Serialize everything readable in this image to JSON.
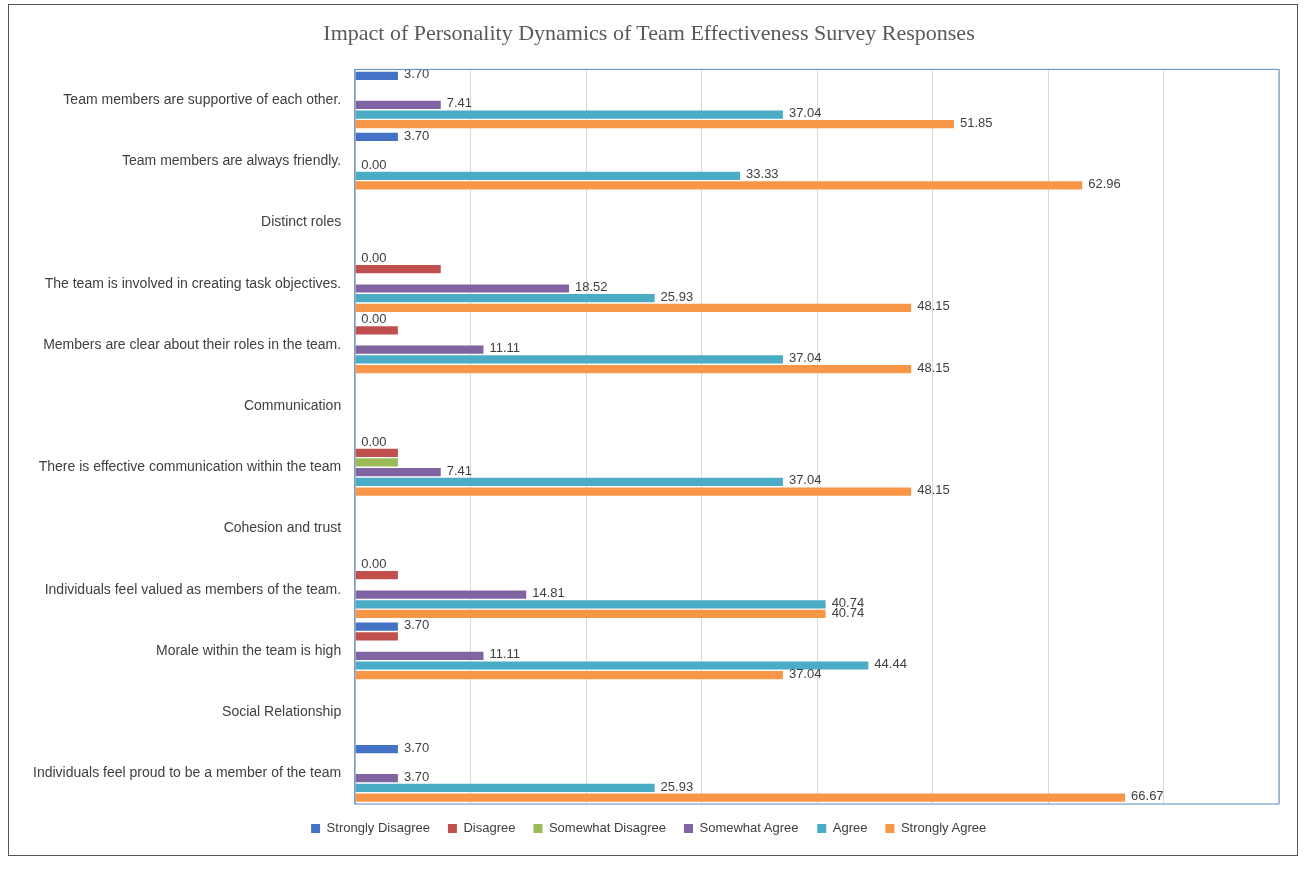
{
  "chart_data": {
    "type": "bar",
    "orientation": "horizontal",
    "title": "Impact of Personality Dynamics of Team Effectiveness Survey Responses",
    "categories": [
      "Team members are supportive of each other.",
      "Team members are always friendly.",
      "Distinct roles",
      "The team is involved in creating task objectives.",
      "Members are clear about their roles in the team.",
      "Communication",
      "There is effective communication within the team",
      "Cohesion and trust",
      "Individuals feel valued as members of the team.",
      "Morale within the team is high",
      "Social Relationship",
      "Individuals feel proud to be a member of the team"
    ],
    "series": [
      {
        "name": "Strongly Disagree",
        "color": "#4472c4",
        "values": [
          3.7,
          3.7,
          null,
          0,
          0,
          null,
          0,
          null,
          0,
          3.7,
          null,
          3.7
        ],
        "value_labels": [
          "3.70",
          "3.70",
          null,
          null,
          null,
          null,
          null,
          null,
          null,
          "3.70",
          null,
          "3.70"
        ]
      },
      {
        "name": "Disagree",
        "color": "#c0504d",
        "values": [
          null,
          null,
          null,
          7.41,
          3.7,
          null,
          3.7,
          null,
          3.7,
          3.7,
          null,
          null
        ],
        "value_labels": [
          null,
          null,
          null,
          null,
          null,
          null,
          null,
          null,
          null,
          null,
          null,
          null
        ]
      },
      {
        "name": "Somewhat Disagree",
        "color": "#9bbb59",
        "values": [
          null,
          null,
          null,
          null,
          null,
          null,
          3.7,
          null,
          null,
          null,
          null,
          null
        ],
        "value_labels": [
          null,
          null,
          null,
          null,
          null,
          null,
          null,
          null,
          null,
          null,
          null,
          null
        ]
      },
      {
        "name": "Somewhat Agree",
        "color": "#8064a2",
        "values": [
          7.41,
          0,
          null,
          18.52,
          11.11,
          null,
          7.41,
          null,
          14.81,
          11.11,
          null,
          3.7
        ],
        "value_labels": [
          "7.41",
          "0.00",
          null,
          "18.52",
          "11.11",
          null,
          "7.41",
          null,
          "14.81",
          "11.11",
          null,
          "3.70"
        ]
      },
      {
        "name": "Agree",
        "color": "#4bacc6",
        "values": [
          37.04,
          33.33,
          null,
          25.93,
          37.04,
          null,
          37.04,
          null,
          40.74,
          44.44,
          null,
          25.93
        ],
        "value_labels": [
          "37.04",
          "33.33",
          null,
          "25.93",
          "37.04",
          null,
          "37.04",
          null,
          "40.74",
          "44.44",
          null,
          "25.93"
        ]
      },
      {
        "name": "Strongly Agree",
        "color": "#f79646",
        "values": [
          51.85,
          62.96,
          null,
          48.15,
          48.15,
          null,
          48.15,
          null,
          40.74,
          37.04,
          null,
          66.67
        ],
        "value_labels": [
          "51.85",
          "62.96",
          null,
          "48.15",
          "48.15",
          null,
          "48.15",
          null,
          "40.74",
          "37.04",
          null,
          "66.67"
        ]
      }
    ],
    "xlim": [
      0,
      80
    ],
    "xticks": [
      {
        "value": 0,
        "label": null
      },
      {
        "value": 10,
        "label": null
      },
      {
        "value": 20,
        "label": null
      },
      {
        "value": 30,
        "label": null
      },
      {
        "value": 40,
        "label": null
      },
      {
        "value": 50,
        "label": null
      },
      {
        "value": 60,
        "label": null
      },
      {
        "value": 70,
        "label": null
      },
      {
        "value": 80,
        "label": null
      }
    ],
    "annotations": [
      {
        "text": "0.00",
        "y": "The team is involved in creating task objectives."
      },
      {
        "text": "0.00",
        "y": "Members are clear about their roles in the team."
      },
      {
        "text": "0.00",
        "y": "There is effective communication within the team"
      },
      {
        "text": "0.00",
        "y": "Individuals feel valued as members of the team."
      }
    ],
    "tick_labels": "y",
    "grid": "x",
    "legend": "bottom"
  }
}
